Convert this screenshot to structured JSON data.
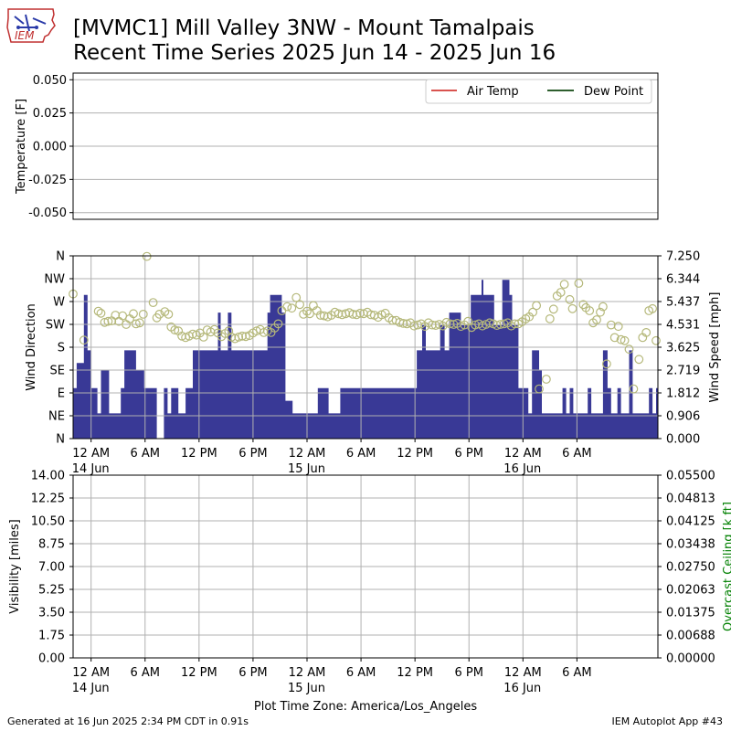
{
  "header": {
    "logo_text": "IEM",
    "title_line1": "[MVMC1] Mill Valley 3NW - Mount Tamalpais",
    "title_line2": "Recent Time Series 2025 Jun 14 - 2025 Jun 16"
  },
  "footer": {
    "generated": "Generated at 16 Jun 2025 2:34 PM CDT in 0.91s",
    "app": "IEM Autoplot App #43",
    "timezone": "Plot Time Zone: America/Los_Angeles"
  },
  "colors": {
    "air_temp": "#d9534f",
    "dew_point": "#2e5e2e",
    "wind_bar": "#393996",
    "wind_dir": "#b5b87a",
    "ceiling_axis": "#008000",
    "grid": "#b0b0b0"
  },
  "chart_data": [
    {
      "type": "line",
      "ylabel": "Temperature [F]",
      "ylim": [
        -0.055,
        0.055
      ],
      "yticks": [
        "0.050",
        "0.025",
        "0.000",
        "-0.025",
        "-0.050"
      ],
      "grid": true,
      "legend_position": "top-right",
      "series": [
        {
          "name": "Air Temp",
          "values": []
        },
        {
          "name": "Dew Point",
          "values": []
        }
      ]
    },
    {
      "type": "bar",
      "left_ylabel": "Wind Direction",
      "right_ylabel": "Wind Speed [mph]",
      "direction_ticks": [
        "N",
        "NE",
        "E",
        "SE",
        "S",
        "SW",
        "W",
        "NW",
        "N"
      ],
      "speed_ticks": [
        "0.000",
        "0.906",
        "1.812",
        "2.719",
        "3.625",
        "4.531",
        "5.437",
        "6.344",
        "7.250"
      ],
      "speed_ylim": [
        0,
        7.25
      ],
      "x_range_hours": [
        -2,
        63
      ],
      "xticks": [
        {
          "label": "12 AM",
          "sub": "14 Jun"
        },
        {
          "label": "6 AM",
          "sub": ""
        },
        {
          "label": "12 PM",
          "sub": ""
        },
        {
          "label": "6 PM",
          "sub": ""
        },
        {
          "label": "12 AM",
          "sub": "15 Jun"
        },
        {
          "label": "6 AM",
          "sub": ""
        },
        {
          "label": "12 PM",
          "sub": ""
        },
        {
          "label": "6 PM",
          "sub": ""
        },
        {
          "label": "12 AM",
          "sub": "16 Jun"
        },
        {
          "label": "6 AM",
          "sub": ""
        }
      ],
      "grid": true,
      "wind_speed_steps": [
        [
          -2,
          2
        ],
        [
          -1.6,
          3
        ],
        [
          -0.8,
          5.7
        ],
        [
          -0.4,
          3.5
        ],
        [
          0,
          2
        ],
        [
          0.7,
          1
        ],
        [
          1.1,
          2.7
        ],
        [
          2,
          1
        ],
        [
          3.3,
          2
        ],
        [
          3.7,
          3.5
        ],
        [
          5,
          2.7
        ],
        [
          5.9,
          2
        ],
        [
          7.3,
          0
        ],
        [
          8.1,
          2
        ],
        [
          8.5,
          1
        ],
        [
          8.9,
          2
        ],
        [
          9.7,
          1
        ],
        [
          10.5,
          2
        ],
        [
          11.3,
          3.5
        ],
        [
          14.1,
          5
        ],
        [
          14.4,
          3.5
        ],
        [
          15.2,
          5
        ],
        [
          15.6,
          3.5
        ],
        [
          19.6,
          5
        ],
        [
          19.9,
          5.7
        ],
        [
          21.2,
          5
        ],
        [
          21.6,
          1.5
        ],
        [
          22.4,
          1
        ],
        [
          24.1,
          1
        ],
        [
          25.2,
          2
        ],
        [
          26.4,
          1
        ],
        [
          27.7,
          2
        ],
        [
          36.2,
          3.5
        ],
        [
          36.8,
          4.5
        ],
        [
          37.2,
          3.5
        ],
        [
          38.8,
          4.5
        ],
        [
          39.3,
          3.5
        ],
        [
          39.8,
          5
        ],
        [
          41.1,
          4.5
        ],
        [
          42.2,
          5.7
        ],
        [
          43.4,
          6.3
        ],
        [
          43.6,
          5.7
        ],
        [
          44.8,
          4.5
        ],
        [
          45.7,
          6.3
        ],
        [
          46.5,
          5.7
        ],
        [
          46.8,
          4.5
        ],
        [
          47.5,
          2
        ],
        [
          48.6,
          1
        ],
        [
          49,
          3.5
        ],
        [
          49.8,
          2.7
        ],
        [
          50.1,
          1
        ],
        [
          52.4,
          2
        ],
        [
          52.8,
          1
        ],
        [
          53.2,
          2
        ],
        [
          53.6,
          1
        ],
        [
          55.2,
          2
        ],
        [
          55.6,
          1
        ],
        [
          56.9,
          3.5
        ],
        [
          57.4,
          2
        ],
        [
          57.8,
          1
        ],
        [
          58.5,
          2
        ],
        [
          58.9,
          1
        ],
        [
          59.8,
          3.5
        ],
        [
          60.2,
          1
        ],
        [
          62,
          2
        ],
        [
          62.4,
          1
        ],
        [
          62.8,
          2
        ],
        [
          63,
          2
        ]
      ],
      "wind_direction_points": [
        [
          -2,
          285
        ],
        [
          -0.8,
          194
        ],
        [
          0.8,
          251
        ],
        [
          1.1,
          247
        ],
        [
          1.5,
          229
        ],
        [
          1.9,
          231
        ],
        [
          2.3,
          232
        ],
        [
          2.7,
          243
        ],
        [
          3.1,
          231
        ],
        [
          3.5,
          242
        ],
        [
          3.9,
          225
        ],
        [
          4.3,
          236
        ],
        [
          4.7,
          246
        ],
        [
          5.0,
          226
        ],
        [
          5.4,
          228
        ],
        [
          5.8,
          245
        ],
        [
          6.2,
          359
        ],
        [
          6.9,
          268
        ],
        [
          7.3,
          238
        ],
        [
          7.6,
          245
        ],
        [
          8.2,
          250
        ],
        [
          8.6,
          245
        ],
        [
          8.9,
          220
        ],
        [
          9.3,
          214
        ],
        [
          9.7,
          212
        ],
        [
          10.1,
          202
        ],
        [
          10.5,
          199
        ],
        [
          10.9,
          202
        ],
        [
          11.3,
          206
        ],
        [
          11.7,
          204
        ],
        [
          12.1,
          208
        ],
        [
          12.5,
          200
        ],
        [
          12.9,
          214
        ],
        [
          13.3,
          210
        ],
        [
          13.7,
          215
        ],
        [
          14.1,
          208
        ],
        [
          14.5,
          201
        ],
        [
          14.9,
          207
        ],
        [
          15.3,
          212
        ],
        [
          15.6,
          200
        ],
        [
          16.0,
          197
        ],
        [
          16.4,
          200
        ],
        [
          16.8,
          202
        ],
        [
          17.2,
          201
        ],
        [
          17.6,
          203
        ],
        [
          18.0,
          208
        ],
        [
          18.4,
          212
        ],
        [
          18.8,
          215
        ],
        [
          19.2,
          209
        ],
        [
          19.6,
          212
        ],
        [
          20.0,
          209
        ],
        [
          20.4,
          218
        ],
        [
          20.8,
          226
        ],
        [
          21.2,
          252
        ],
        [
          21.8,
          260
        ],
        [
          22.3,
          257
        ],
        [
          22.8,
          278
        ],
        [
          23.2,
          264
        ],
        [
          23.6,
          245
        ],
        [
          24.0,
          251
        ],
        [
          24.3,
          246
        ],
        [
          24.7,
          262
        ],
        [
          25.1,
          252
        ],
        [
          25.5,
          243
        ],
        [
          25.9,
          242
        ],
        [
          26.3,
          240
        ],
        [
          26.7,
          243
        ],
        [
          27.1,
          249
        ],
        [
          27.5,
          246
        ],
        [
          27.9,
          244
        ],
        [
          28.3,
          246
        ],
        [
          28.7,
          248
        ],
        [
          29.1,
          245
        ],
        [
          29.5,
          244
        ],
        [
          29.9,
          247
        ],
        [
          30.3,
          246
        ],
        [
          30.7,
          249
        ],
        [
          31.1,
          244
        ],
        [
          31.5,
          243
        ],
        [
          31.9,
          239
        ],
        [
          32.3,
          244
        ],
        [
          32.7,
          247
        ],
        [
          33.1,
          238
        ],
        [
          33.5,
          233
        ],
        [
          33.9,
          233
        ],
        [
          34.3,
          229
        ],
        [
          34.7,
          227
        ],
        [
          35.1,
          226
        ],
        [
          35.5,
          228
        ],
        [
          35.9,
          222
        ],
        [
          36.3,
          224
        ],
        [
          36.7,
          226
        ],
        [
          37.1,
          221
        ],
        [
          37.5,
          228
        ],
        [
          37.9,
          224
        ],
        [
          38.3,
          223
        ],
        [
          38.7,
          225
        ],
        [
          39.1,
          222
        ],
        [
          39.5,
          229
        ],
        [
          39.9,
          226
        ],
        [
          40.3,
          225
        ],
        [
          40.7,
          227
        ],
        [
          41.1,
          221
        ],
        [
          41.5,
          224
        ],
        [
          41.9,
          231
        ],
        [
          42.3,
          219
        ],
        [
          42.7,
          224
        ],
        [
          43.1,
          226
        ],
        [
          43.5,
          222
        ],
        [
          43.9,
          225
        ],
        [
          44.3,
          228
        ],
        [
          44.7,
          226
        ],
        [
          45.1,
          223
        ],
        [
          45.5,
          225
        ],
        [
          45.9,
          226
        ],
        [
          46.3,
          228
        ],
        [
          46.7,
          222
        ],
        [
          47.1,
          226
        ],
        [
          47.5,
          226
        ],
        [
          47.9,
          230
        ],
        [
          48.3,
          236
        ],
        [
          48.7,
          240
        ],
        [
          49.1,
          249
        ],
        [
          49.5,
          262
        ],
        [
          49.8,
          98
        ],
        [
          50.6,
          117
        ],
        [
          51.0,
          236
        ],
        [
          51.4,
          255
        ],
        [
          51.8,
          281
        ],
        [
          52.2,
          288
        ],
        [
          52.6,
          304
        ],
        [
          53.2,
          274
        ],
        [
          53.5,
          256
        ],
        [
          54.2,
          306
        ],
        [
          54.7,
          264
        ],
        [
          55.0,
          258
        ],
        [
          55.4,
          252
        ],
        [
          55.8,
          228
        ],
        [
          56.2,
          234
        ],
        [
          56.6,
          249
        ],
        [
          56.9,
          260
        ],
        [
          57.3,
          147
        ],
        [
          57.8,
          224
        ],
        [
          58.2,
          199
        ],
        [
          58.6,
          221
        ],
        [
          58.9,
          195
        ],
        [
          59.3,
          193
        ],
        [
          59.8,
          176
        ],
        [
          60.3,
          98
        ],
        [
          60.9,
          156
        ],
        [
          61.3,
          199
        ],
        [
          61.7,
          209
        ],
        [
          62.0,
          252
        ],
        [
          62.4,
          256
        ],
        [
          62.8,
          193
        ]
      ]
    },
    {
      "type": "line",
      "left_ylabel": "Visibility [miles]",
      "right_ylabel": "Overcast Ceiling [k ft]",
      "left_ticks": [
        "0.00",
        "1.75",
        "3.50",
        "5.25",
        "7.00",
        "8.75",
        "10.50",
        "12.25",
        "14.00"
      ],
      "right_ticks": [
        "0.00000",
        "0.00688",
        "0.01375",
        "0.02063",
        "0.02750",
        "0.03438",
        "0.04125",
        "0.04813",
        "0.05500"
      ],
      "left_ylim": [
        0,
        14
      ],
      "right_ylim": [
        0,
        0.055
      ],
      "grid": true,
      "series": []
    }
  ]
}
